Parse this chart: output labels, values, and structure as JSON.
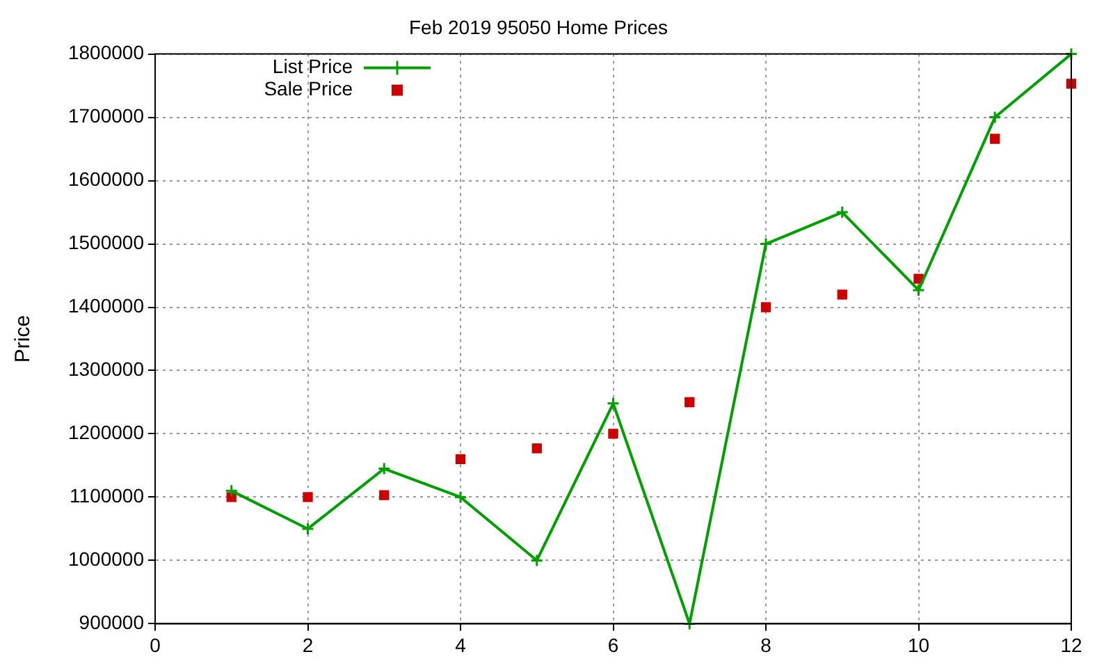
{
  "chart_data": {
    "type": "line",
    "title": "Feb 2019 95050 Home Prices",
    "ylabel": "Price",
    "x": [
      1,
      2,
      3,
      4,
      5,
      6,
      7,
      8,
      9,
      10,
      11,
      12
    ],
    "series": [
      {
        "name": "List Price",
        "type": "line",
        "color": "#00a000",
        "marker": "cross",
        "values": [
          1110000,
          1050000,
          1145000,
          1100000,
          1000000,
          1248000,
          900000,
          1500000,
          1550000,
          1427000,
          1700000,
          1800000
        ]
      },
      {
        "name": "Sale Price",
        "type": "scatter",
        "color": "#cc0000",
        "marker": "square",
        "values": [
          1100000,
          1100000,
          1103000,
          1160000,
          1177000,
          1200000,
          1250000,
          1400000,
          1420000,
          1445000,
          1666000,
          1753000
        ]
      }
    ],
    "xlim": [
      0,
      12
    ],
    "xticks": [
      0,
      2,
      4,
      6,
      8,
      10,
      12
    ],
    "ylim": [
      900000,
      1800000
    ],
    "yticks": [
      900000,
      1000000,
      1100000,
      1200000,
      1300000,
      1400000,
      1500000,
      1600000,
      1700000,
      1800000
    ],
    "grid": true,
    "legend": "top left",
    "line_style": "solid"
  }
}
